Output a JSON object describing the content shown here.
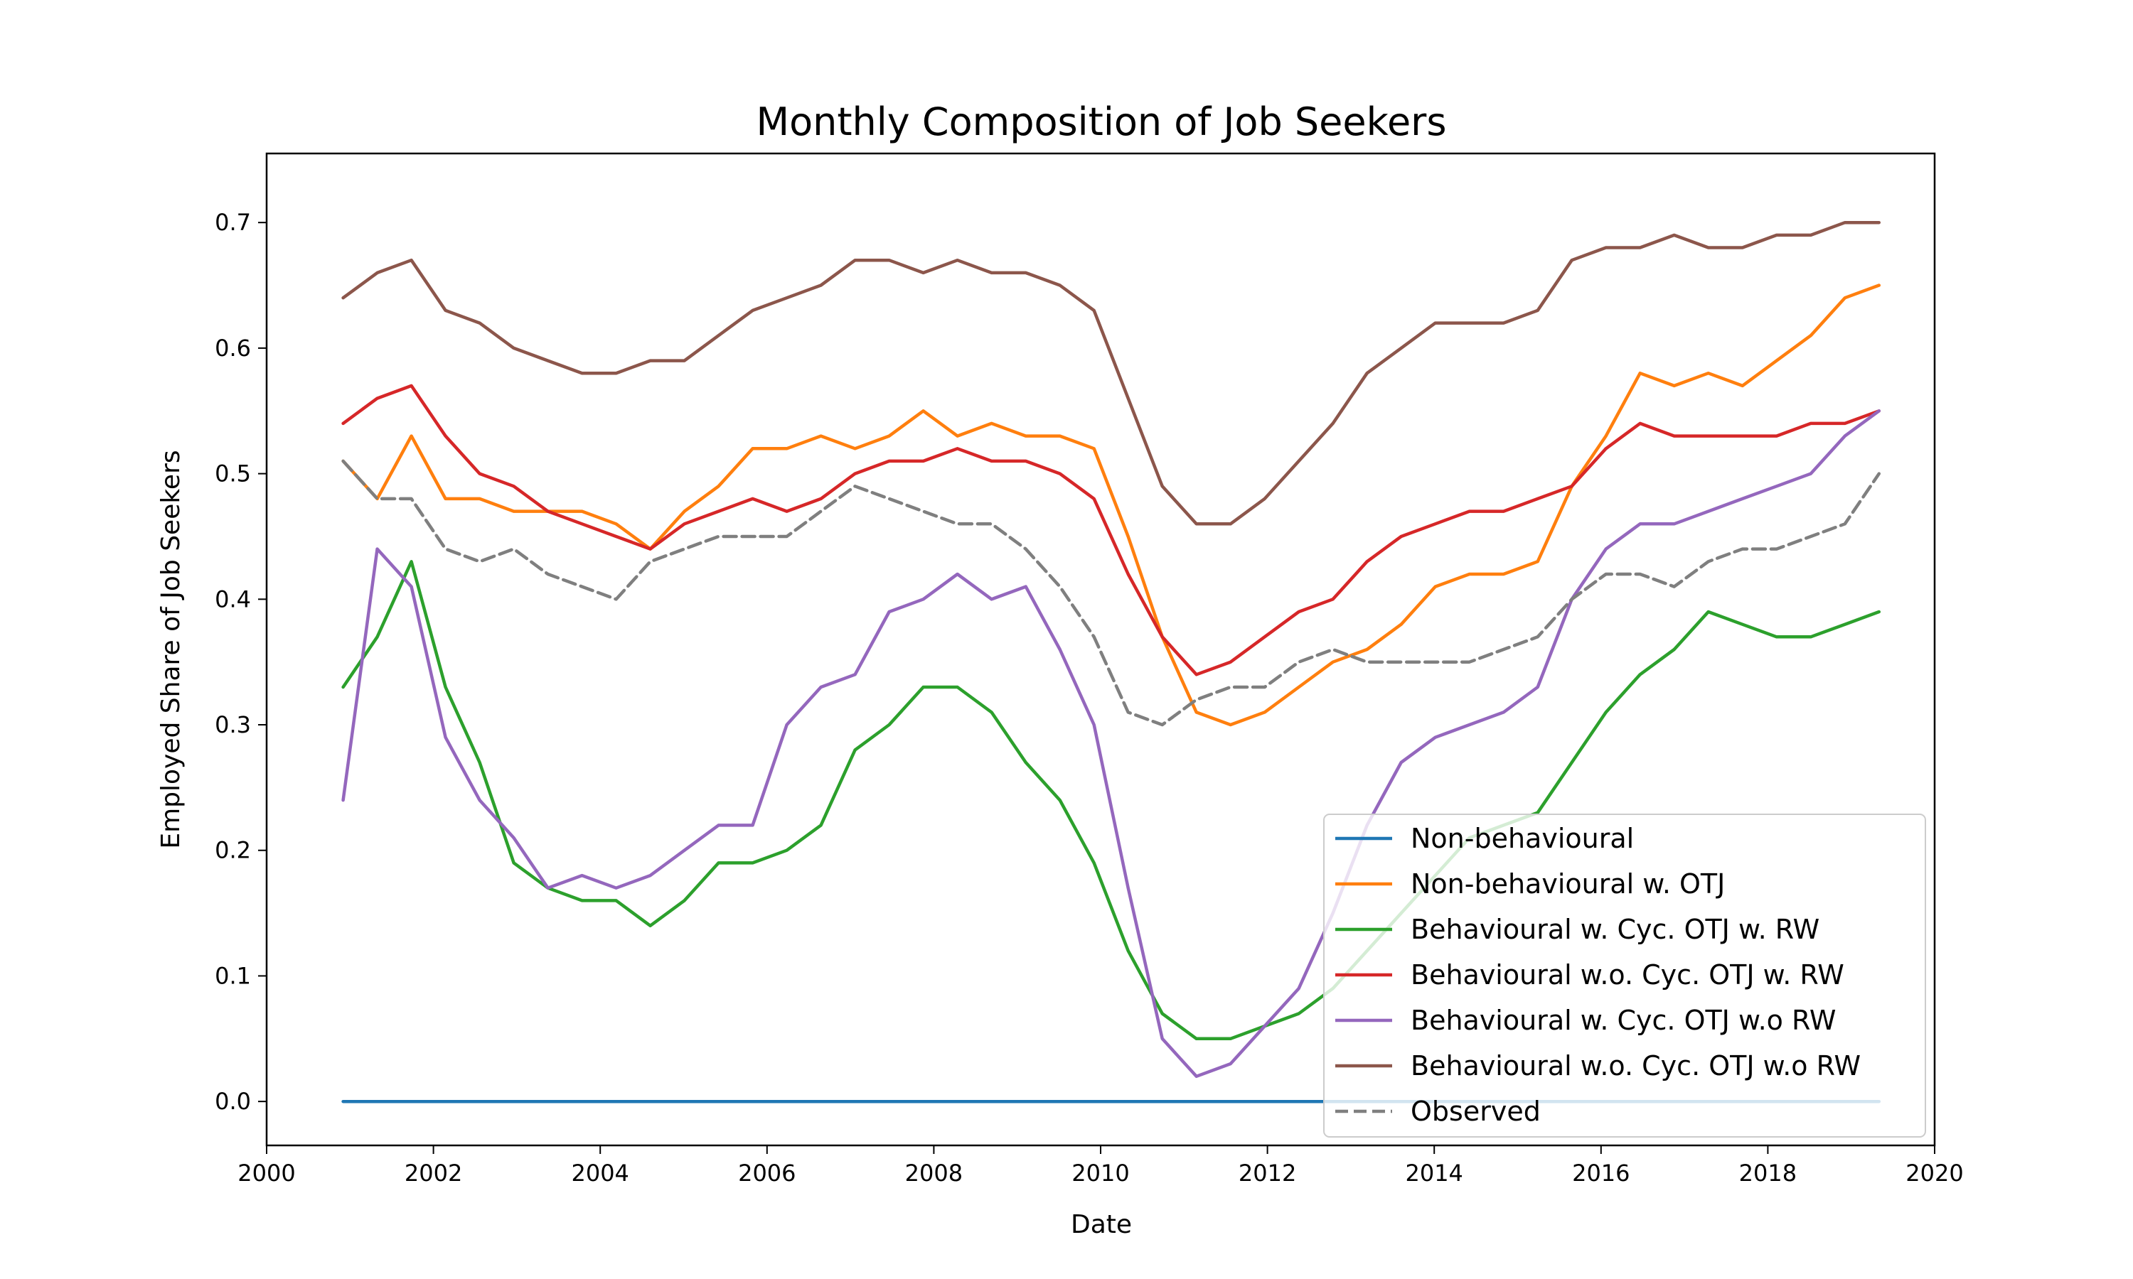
{
  "chart_data": {
    "type": "line",
    "title": "Monthly Composition of Job Seekers",
    "xlabel": "Date",
    "ylabel": "Employed Share of Job Seekers",
    "xlim": [
      2000,
      2020
    ],
    "ylim": [
      -0.035,
      0.755
    ],
    "xticks": [
      2000,
      2002,
      2004,
      2006,
      2008,
      2010,
      2012,
      2014,
      2016,
      2018,
      2020
    ],
    "xtick_labels": [
      "2000",
      "2002",
      "2004",
      "2006",
      "2008",
      "2010",
      "2012",
      "2014",
      "2016",
      "2018",
      "2020"
    ],
    "yticks": [
      0.0,
      0.1,
      0.2,
      0.3,
      0.4,
      0.5,
      0.6,
      0.7
    ],
    "ytick_labels": [
      "0.0",
      "0.1",
      "0.2",
      "0.3",
      "0.4",
      "0.5",
      "0.6",
      "0.7"
    ],
    "grid": false,
    "legend_position": "lower-right",
    "x_start": 2000.917,
    "x_end": 2019.333,
    "series": [
      {
        "name": "Non-behavioural",
        "color": "#1f77b4",
        "dash": "solid",
        "values": [
          0.0,
          0.0
        ]
      },
      {
        "name": "Non-behavioural w. OTJ",
        "color": "#ff7f0e",
        "dash": "solid",
        "values": [
          0.51,
          0.48,
          0.53,
          0.48,
          0.48,
          0.47,
          0.47,
          0.47,
          0.46,
          0.44,
          0.47,
          0.49,
          0.52,
          0.52,
          0.53,
          0.52,
          0.53,
          0.55,
          0.53,
          0.54,
          0.53,
          0.53,
          0.52,
          0.45,
          0.37,
          0.31,
          0.3,
          0.31,
          0.33,
          0.35,
          0.36,
          0.38,
          0.41,
          0.42,
          0.42,
          0.43,
          0.49,
          0.53,
          0.58,
          0.57,
          0.58,
          0.57,
          0.59,
          0.61,
          0.64,
          0.65
        ]
      },
      {
        "name": "Behavioural w. Cyc. OTJ w. RW",
        "color": "#2ca02c",
        "dash": "solid",
        "values": [
          0.33,
          0.37,
          0.43,
          0.33,
          0.27,
          0.19,
          0.17,
          0.16,
          0.16,
          0.14,
          0.16,
          0.19,
          0.19,
          0.2,
          0.22,
          0.28,
          0.3,
          0.33,
          0.33,
          0.31,
          0.27,
          0.24,
          0.19,
          0.12,
          0.07,
          0.05,
          0.05,
          0.06,
          0.07,
          0.09,
          0.12,
          0.15,
          0.18,
          0.21,
          0.22,
          0.23,
          0.27,
          0.31,
          0.34,
          0.36,
          0.39,
          0.38,
          0.37,
          0.37,
          0.38,
          0.39
        ]
      },
      {
        "name": "Behavioural w.o. Cyc. OTJ w. RW",
        "color": "#d62728",
        "dash": "solid",
        "values": [
          0.54,
          0.56,
          0.57,
          0.53,
          0.5,
          0.49,
          0.47,
          0.46,
          0.45,
          0.44,
          0.46,
          0.47,
          0.48,
          0.47,
          0.48,
          0.5,
          0.51,
          0.51,
          0.52,
          0.51,
          0.51,
          0.5,
          0.48,
          0.42,
          0.37,
          0.34,
          0.35,
          0.37,
          0.39,
          0.4,
          0.43,
          0.45,
          0.46,
          0.47,
          0.47,
          0.48,
          0.49,
          0.52,
          0.54,
          0.53,
          0.53,
          0.53,
          0.53,
          0.54,
          0.54,
          0.55
        ]
      },
      {
        "name": "Behavioural w. Cyc. OTJ w.o RW",
        "color": "#9467bd",
        "dash": "solid",
        "values": [
          0.24,
          0.44,
          0.41,
          0.29,
          0.24,
          0.21,
          0.17,
          0.18,
          0.17,
          0.18,
          0.2,
          0.22,
          0.22,
          0.3,
          0.33,
          0.34,
          0.39,
          0.4,
          0.42,
          0.4,
          0.41,
          0.36,
          0.3,
          0.17,
          0.05,
          0.02,
          0.03,
          0.06,
          0.09,
          0.15,
          0.22,
          0.27,
          0.29,
          0.3,
          0.31,
          0.33,
          0.4,
          0.44,
          0.46,
          0.46,
          0.47,
          0.48,
          0.49,
          0.5,
          0.53,
          0.55
        ]
      },
      {
        "name": "Behavioural w.o. Cyc. OTJ w.o RW",
        "color": "#8c564b",
        "dash": "solid",
        "values": [
          0.64,
          0.66,
          0.67,
          0.63,
          0.62,
          0.6,
          0.59,
          0.58,
          0.58,
          0.59,
          0.59,
          0.61,
          0.63,
          0.64,
          0.65,
          0.67,
          0.67,
          0.66,
          0.67,
          0.66,
          0.66,
          0.65,
          0.63,
          0.56,
          0.49,
          0.46,
          0.46,
          0.48,
          0.51,
          0.54,
          0.58,
          0.6,
          0.62,
          0.62,
          0.62,
          0.63,
          0.67,
          0.68,
          0.68,
          0.69,
          0.68,
          0.68,
          0.69,
          0.69,
          0.7,
          0.7
        ]
      },
      {
        "name": "Observed",
        "color": "#7f7f7f",
        "dash": "dashed",
        "values": [
          0.51,
          0.48,
          0.48,
          0.44,
          0.43,
          0.44,
          0.42,
          0.41,
          0.4,
          0.43,
          0.44,
          0.45,
          0.45,
          0.45,
          0.47,
          0.49,
          0.48,
          0.47,
          0.46,
          0.46,
          0.44,
          0.41,
          0.37,
          0.31,
          0.3,
          0.32,
          0.33,
          0.33,
          0.35,
          0.36,
          0.35,
          0.35,
          0.35,
          0.35,
          0.36,
          0.37,
          0.4,
          0.42,
          0.42,
          0.41,
          0.43,
          0.44,
          0.44,
          0.45,
          0.46,
          0.5
        ]
      }
    ]
  }
}
